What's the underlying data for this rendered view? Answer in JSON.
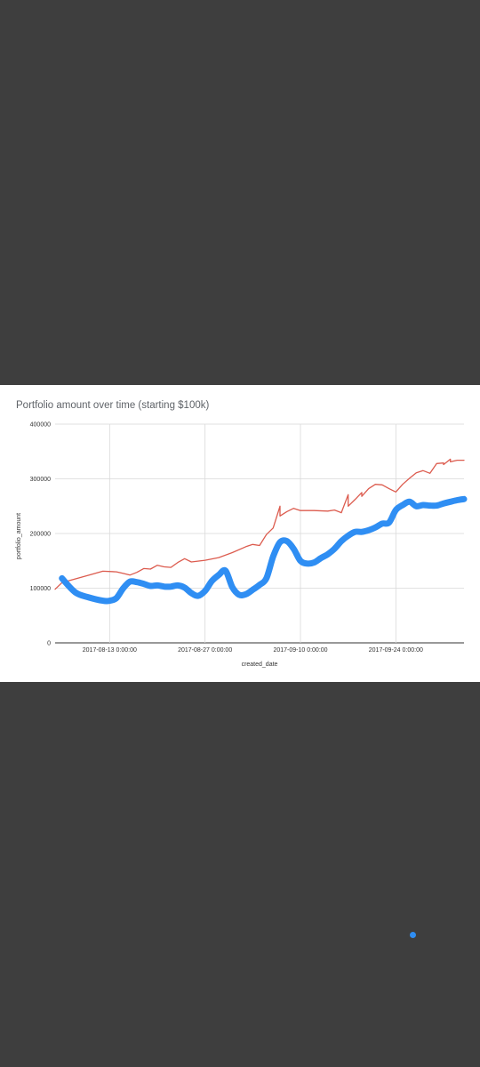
{
  "chart_data": {
    "type": "line",
    "title": "Portfolio amount over time (starting $100k)",
    "xlabel": "created_date",
    "ylabel": "portfolio_amount",
    "ylim": [
      0,
      400000
    ],
    "yticks": [
      0,
      100000,
      200000,
      300000,
      400000
    ],
    "xticks": [
      {
        "date": "2017-08-13",
        "label": "2017-08-13 0:00:00"
      },
      {
        "date": "2017-08-27",
        "label": "2017-08-27 0:00:00"
      },
      {
        "date": "2017-09-10",
        "label": "2017-09-10 0:00:00"
      },
      {
        "date": "2017-09-24",
        "label": "2017-09-24 0:00:00"
      }
    ],
    "xlim": [
      "2017-08-05",
      "2017-10-04"
    ],
    "grid": true,
    "series": [
      {
        "color": "#dc5b4e",
        "width": "thin",
        "points": [
          [
            "2017-08-05",
            98000
          ],
          [
            "2017-08-06",
            110000
          ],
          [
            "2017-08-08",
            117000
          ],
          [
            "2017-08-10",
            124000
          ],
          [
            "2017-08-12",
            131000
          ],
          [
            "2017-08-14",
            130000
          ],
          [
            "2017-08-15",
            127000
          ],
          [
            "2017-08-16",
            124000
          ],
          [
            "2017-08-17",
            129000
          ],
          [
            "2017-08-18",
            136000
          ],
          [
            "2017-08-19",
            135000
          ],
          [
            "2017-08-20",
            142000
          ],
          [
            "2017-08-21",
            139000
          ],
          [
            "2017-08-22",
            138000
          ],
          [
            "2017-08-23",
            147000
          ],
          [
            "2017-08-24",
            154000
          ],
          [
            "2017-08-25",
            148000
          ],
          [
            "2017-08-27",
            151000
          ],
          [
            "2017-08-29",
            156000
          ],
          [
            "2017-08-31",
            165000
          ],
          [
            "2017-09-02",
            176000
          ],
          [
            "2017-09-03",
            180000
          ],
          [
            "2017-09-04",
            178000
          ],
          [
            "2017-09-05",
            198000
          ],
          [
            "2017-09-06",
            210000
          ],
          [
            "2017-09-07",
            250000
          ],
          [
            "2017-09-07",
            232000
          ],
          [
            "2017-09-08",
            240000
          ],
          [
            "2017-09-09",
            246000
          ],
          [
            "2017-09-10",
            242000
          ],
          [
            "2017-09-12",
            242000
          ],
          [
            "2017-09-14",
            241000
          ],
          [
            "2017-09-15",
            243000
          ],
          [
            "2017-09-16",
            238000
          ],
          [
            "2017-09-17",
            271000
          ],
          [
            "2017-09-17",
            250000
          ],
          [
            "2017-09-18",
            262000
          ],
          [
            "2017-09-19",
            275000
          ],
          [
            "2017-09-19",
            268000
          ],
          [
            "2017-09-20",
            282000
          ],
          [
            "2017-09-21",
            290000
          ],
          [
            "2017-09-22",
            289000
          ],
          [
            "2017-09-23",
            282000
          ],
          [
            "2017-09-24",
            276000
          ],
          [
            "2017-09-25",
            290000
          ],
          [
            "2017-09-26",
            301000
          ],
          [
            "2017-09-27",
            311000
          ],
          [
            "2017-09-28",
            315000
          ],
          [
            "2017-09-29",
            310000
          ],
          [
            "2017-09-30",
            328000
          ],
          [
            "2017-10-01",
            329000
          ],
          [
            "2017-10-01",
            326000
          ],
          [
            "2017-10-02",
            336000
          ],
          [
            "2017-10-02",
            331000
          ],
          [
            "2017-10-03",
            334000
          ],
          [
            "2017-10-04",
            334000
          ]
        ]
      },
      {
        "color": "#2f8ef3",
        "width": "thick",
        "points": [
          [
            "2017-08-06",
            118000
          ],
          [
            "2017-08-08",
            92000
          ],
          [
            "2017-08-10",
            83000
          ],
          [
            "2017-08-12",
            77000
          ],
          [
            "2017-08-13",
            77000
          ],
          [
            "2017-08-14",
            82000
          ],
          [
            "2017-08-15",
            100000
          ],
          [
            "2017-08-16",
            112000
          ],
          [
            "2017-08-17",
            111000
          ],
          [
            "2017-08-18",
            108000
          ],
          [
            "2017-08-19",
            104000
          ],
          [
            "2017-08-20",
            105000
          ],
          [
            "2017-08-21",
            103000
          ],
          [
            "2017-08-22",
            103000
          ],
          [
            "2017-08-23",
            105000
          ],
          [
            "2017-08-24",
            101000
          ],
          [
            "2017-08-25",
            91000
          ],
          [
            "2017-08-26",
            86000
          ],
          [
            "2017-08-27",
            95000
          ],
          [
            "2017-08-28",
            113000
          ],
          [
            "2017-08-29",
            124000
          ],
          [
            "2017-08-30",
            132000
          ],
          [
            "2017-08-31",
            102000
          ],
          [
            "2017-09-01",
            88000
          ],
          [
            "2017-09-02",
            89000
          ],
          [
            "2017-09-03",
            97000
          ],
          [
            "2017-09-04",
            106000
          ],
          [
            "2017-09-05",
            118000
          ],
          [
            "2017-09-06",
            158000
          ],
          [
            "2017-09-07",
            184000
          ],
          [
            "2017-09-08",
            186000
          ],
          [
            "2017-09-09",
            172000
          ],
          [
            "2017-09-10",
            150000
          ],
          [
            "2017-09-11",
            145000
          ],
          [
            "2017-09-12",
            147000
          ],
          [
            "2017-09-13",
            155000
          ],
          [
            "2017-09-14",
            162000
          ],
          [
            "2017-09-15",
            172000
          ],
          [
            "2017-09-16",
            186000
          ],
          [
            "2017-09-17",
            196000
          ],
          [
            "2017-09-18",
            203000
          ],
          [
            "2017-09-19",
            203000
          ],
          [
            "2017-09-20",
            206000
          ],
          [
            "2017-09-21",
            211000
          ],
          [
            "2017-09-22",
            218000
          ],
          [
            "2017-09-23",
            220000
          ],
          [
            "2017-09-24",
            243000
          ],
          [
            "2017-09-25",
            252000
          ],
          [
            "2017-09-26",
            258000
          ],
          [
            "2017-09-27",
            250000
          ],
          [
            "2017-09-28",
            252000
          ],
          [
            "2017-09-29",
            251000
          ],
          [
            "2017-09-30",
            251000
          ],
          [
            "2017-10-01",
            255000
          ],
          [
            "2017-10-02",
            258000
          ],
          [
            "2017-10-03",
            261000
          ],
          [
            "2017-10-04",
            263000
          ]
        ]
      }
    ]
  }
}
